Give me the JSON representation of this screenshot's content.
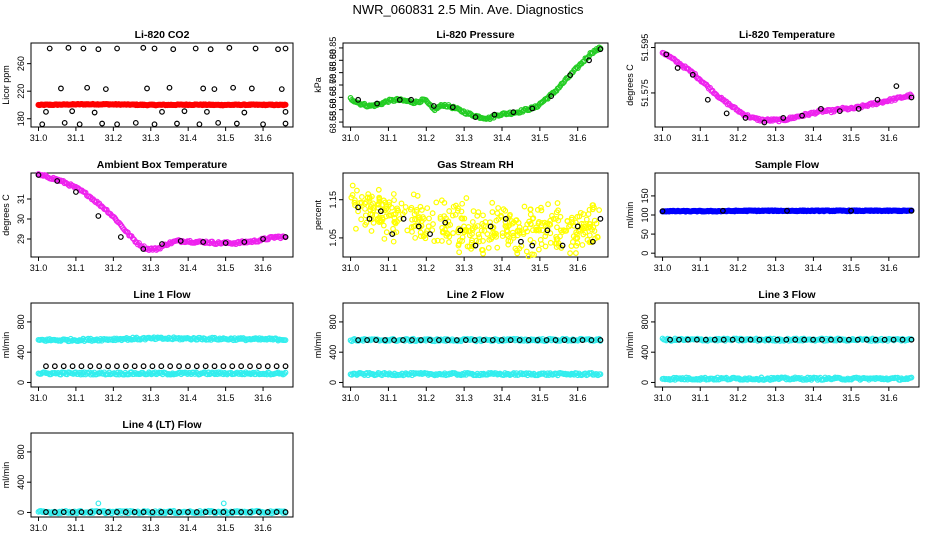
{
  "page": {
    "title": "NWR_060831  2.5 Min. Ave. Diagnostics"
  },
  "chart_data": [
    {
      "type": "scatter",
      "title": "Li-820 CO2",
      "xlabel": "",
      "ylabel": "Licor ppm",
      "xlim": [
        30.98,
        31.68
      ],
      "ylim": [
        168,
        290
      ],
      "xticks": [
        31.0,
        31.1,
        31.2,
        31.3,
        31.4,
        31.5,
        31.6
      ],
      "xtick_labels": [
        "31.0",
        "31.1",
        "31.2",
        "31.3",
        "31.4",
        "31.5",
        "31.6"
      ],
      "yticks": [
        180,
        220,
        260
      ],
      "ytick_labels": [
        "180",
        "220",
        "260"
      ],
      "series": [
        {
          "name": "dense",
          "color": "#ff0000",
          "marker": "dot",
          "x_start": 31.0,
          "x_end": 31.66,
          "values": [
            200,
            200.5,
            201,
            201,
            200.5,
            200,
            200.2,
            200.5,
            200,
            200.3,
            200.2,
            200
          ]
        },
        {
          "name": "black-high",
          "color": "#000000",
          "marker": "circle",
          "x": [
            31.03,
            31.08,
            31.12,
            31.16,
            31.21,
            31.28,
            31.31,
            31.36,
            31.42,
            31.46,
            31.51,
            31.58,
            31.64,
            31.66
          ],
          "values": [
            282,
            283,
            282,
            281,
            282,
            283,
            282,
            281,
            282,
            281,
            283,
            282,
            281,
            282
          ]
        },
        {
          "name": "black-low",
          "color": "#000000",
          "marker": "circle",
          "x": [
            31.01,
            31.07,
            31.11,
            31.17,
            31.21,
            31.26,
            31.31,
            31.37,
            31.43,
            31.48,
            31.53,
            31.6,
            31.66
          ],
          "values": [
            172,
            174,
            172,
            173,
            172,
            174,
            172,
            173,
            172,
            174,
            173,
            172,
            173
          ]
        },
        {
          "name": "black-mid",
          "color": "#000000",
          "marker": "circle",
          "x": [
            31.06,
            31.13,
            31.18,
            31.29,
            31.35,
            31.44,
            31.47,
            31.52,
            31.57,
            31.65
          ],
          "values": [
            224,
            225,
            223,
            224,
            225,
            224,
            223,
            225,
            224,
            223
          ]
        },
        {
          "name": "black-near",
          "color": "#000000",
          "marker": "circle",
          "x": [
            31.02,
            31.09,
            31.15,
            31.33,
            31.39,
            31.45,
            31.55,
            31.66
          ],
          "values": [
            190,
            191,
            189,
            190,
            191,
            190,
            189,
            190
          ]
        }
      ]
    },
    {
      "type": "scatter",
      "title": "Li-820 Pressure",
      "xlabel": "",
      "ylabel": "kPa",
      "xlim": [
        30.98,
        31.68
      ],
      "ylim": [
        68.53,
        68.87
      ],
      "xticks": [
        31.0,
        31.1,
        31.2,
        31.3,
        31.4,
        31.5,
        31.6
      ],
      "xtick_labels": [
        "31.0",
        "31.1",
        "31.2",
        "31.3",
        "31.4",
        "31.5",
        "31.6"
      ],
      "yticks": [
        68.55,
        68.6,
        68.65,
        68.7,
        68.75,
        68.8,
        68.85
      ],
      "ytick_labels": [
        "68.55",
        "68.60",
        "68.65",
        "68.70",
        "68.75",
        "68.80",
        "68.85"
      ],
      "series": [
        {
          "name": "green",
          "color": "#22cc22",
          "marker": "circle",
          "x_start": 31.0,
          "x_end": 31.66,
          "values": [
            68.645,
            68.625,
            68.615,
            68.62,
            68.635,
            68.64,
            68.635,
            68.63,
            68.64,
            68.6,
            68.62,
            68.61,
            68.595,
            68.58,
            68.57,
            68.565,
            68.58,
            68.585,
            68.59,
            68.6,
            68.61,
            68.64,
            68.67,
            68.71,
            68.75,
            68.79,
            68.83,
            68.85
          ]
        },
        {
          "name": "black",
          "color": "#000000",
          "marker": "circle",
          "x": [
            31.02,
            31.07,
            31.13,
            31.16,
            31.22,
            31.27,
            31.33,
            31.38,
            31.43,
            31.48,
            31.53,
            31.58,
            31.63,
            31.66
          ],
          "values": [
            68.64,
            68.625,
            68.64,
            68.64,
            68.615,
            68.61,
            68.57,
            68.58,
            68.59,
            68.605,
            68.655,
            68.74,
            68.8,
            68.845
          ]
        }
      ]
    },
    {
      "type": "scatter",
      "title": "Li-820 Temperature",
      "xlabel": "",
      "ylabel": "degrees C",
      "xlim": [
        30.98,
        31.68
      ],
      "ylim": [
        51.56,
        51.597
      ],
      "xticks": [
        31.0,
        31.1,
        31.2,
        31.3,
        31.4,
        31.5,
        31.6
      ],
      "xtick_labels": [
        "31.0",
        "31.1",
        "31.2",
        "31.3",
        "31.4",
        "31.5",
        "31.6"
      ],
      "yticks": [
        51.575,
        51.595
      ],
      "ytick_labels": [
        "51.575",
        "51.595"
      ],
      "series": [
        {
          "name": "magenta",
          "color": "#ee22ee",
          "marker": "circle",
          "x_start": 31.0,
          "x_end": 31.66,
          "values": [
            51.593,
            51.59,
            51.587,
            51.584,
            51.58,
            51.576,
            51.572,
            51.569,
            51.566,
            51.564,
            51.563,
            51.563,
            51.563,
            51.564,
            51.565,
            51.566,
            51.567,
            51.567,
            51.568,
            51.568,
            51.569,
            51.57,
            51.571,
            51.572,
            51.573,
            51.574
          ]
        },
        {
          "name": "black",
          "color": "#000000",
          "marker": "circle",
          "x": [
            31.01,
            31.04,
            31.08,
            31.12,
            31.17,
            31.22,
            31.27,
            31.32,
            31.37,
            31.42,
            31.47,
            31.52,
            31.57,
            31.62,
            31.66
          ],
          "values": [
            51.592,
            51.586,
            51.583,
            51.572,
            51.566,
            51.564,
            51.562,
            51.564,
            51.565,
            51.568,
            51.567,
            51.568,
            51.572,
            51.578,
            51.573
          ]
        }
      ]
    },
    {
      "type": "scatter",
      "title": "Ambient Box Temperature",
      "xlabel": "",
      "ylabel": "degrees C",
      "xlim": [
        30.98,
        31.68
      ],
      "ylim": [
        28.1,
        32.3
      ],
      "xticks": [
        31.0,
        31.1,
        31.2,
        31.3,
        31.4,
        31.5,
        31.6
      ],
      "xtick_labels": [
        "31.0",
        "31.1",
        "31.2",
        "31.3",
        "31.4",
        "31.5",
        "31.6"
      ],
      "yticks": [
        29,
        30,
        31
      ],
      "ytick_labels": [
        "29",
        "30",
        "31"
      ],
      "series": [
        {
          "name": "magenta",
          "color": "#ee22ee",
          "marker": "circle",
          "x_start": 31.0,
          "x_end": 31.66,
          "values": [
            32.2,
            32.1,
            31.95,
            31.75,
            31.5,
            31.2,
            30.8,
            30.4,
            29.9,
            29.3,
            28.8,
            28.5,
            28.5,
            28.75,
            28.9,
            28.9,
            28.85,
            28.85,
            28.8,
            28.8,
            28.8,
            28.85,
            28.9,
            29.0,
            29.1,
            29.1
          ]
        },
        {
          "name": "black",
          "color": "#000000",
          "marker": "circle",
          "x": [
            31.0,
            31.05,
            31.1,
            31.16,
            31.22,
            31.28,
            31.33,
            31.38,
            31.44,
            31.5,
            31.55,
            31.6,
            31.66
          ],
          "values": [
            32.2,
            31.9,
            31.35,
            30.15,
            29.1,
            28.5,
            28.75,
            28.9,
            28.85,
            28.8,
            28.85,
            29.0,
            29.1
          ]
        }
      ]
    },
    {
      "type": "scatter",
      "title": "Gas Stream RH",
      "xlabel": "",
      "ylabel": "percent",
      "xlim": [
        30.98,
        31.68
      ],
      "ylim": [
        1.0,
        1.22
      ],
      "xticks": [
        31.0,
        31.1,
        31.2,
        31.3,
        31.4,
        31.5,
        31.6
      ],
      "xtick_labels": [
        "31.0",
        "31.1",
        "31.2",
        "31.3",
        "31.4",
        "31.5",
        "31.6"
      ],
      "yticks": [
        1.05,
        1.15
      ],
      "ytick_labels": [
        "1.05",
        "1.15"
      ],
      "series": [
        {
          "name": "yellow",
          "color": "#ffff00",
          "marker": "circle",
          "x_start": 31.0,
          "x_end": 31.66,
          "center": [
            1.14,
            1.12,
            1.1,
            1.09,
            1.08,
            1.075,
            1.07,
            1.07,
            1.07,
            1.075,
            1.08
          ],
          "spread": 0.05
        },
        {
          "name": "black",
          "color": "#000000",
          "marker": "circle",
          "x": [
            31.02,
            31.05,
            31.08,
            31.11,
            31.14,
            31.18,
            31.21,
            31.25,
            31.29,
            31.33,
            31.37,
            31.41,
            31.45,
            31.48,
            31.52,
            31.56,
            31.6,
            31.64,
            31.66
          ],
          "values": [
            1.13,
            1.1,
            1.12,
            1.06,
            1.1,
            1.08,
            1.06,
            1.09,
            1.07,
            1.03,
            1.08,
            1.1,
            1.04,
            1.03,
            1.07,
            1.03,
            1.08,
            1.04,
            1.1
          ]
        }
      ]
    },
    {
      "type": "scatter",
      "title": "Sample Flow",
      "xlabel": "",
      "ylabel": "ml/min",
      "xlim": [
        30.98,
        31.68
      ],
      "ylim": [
        -10,
        210
      ],
      "xticks": [
        31.0,
        31.1,
        31.2,
        31.3,
        31.4,
        31.5,
        31.6
      ],
      "xtick_labels": [
        "31.0",
        "31.1",
        "31.2",
        "31.3",
        "31.4",
        "31.5",
        "31.6"
      ],
      "yticks": [
        0,
        50,
        100,
        150
      ],
      "ytick_labels": [
        "0",
        "50",
        "100",
        "150"
      ],
      "series": [
        {
          "name": "blue",
          "color": "#0000ff",
          "marker": "dot",
          "x_start": 31.0,
          "x_end": 31.66,
          "values": [
            110,
            110,
            110,
            111,
            111,
            111,
            111,
            111,
            111,
            111
          ]
        },
        {
          "name": "black",
          "color": "#000000",
          "marker": "circle",
          "x": [
            31.0,
            31.16,
            31.33,
            31.5,
            31.66
          ],
          "values": [
            110,
            111,
            111,
            111,
            111
          ]
        }
      ]
    },
    {
      "type": "scatter",
      "title": "Line 1 Flow",
      "xlabel": "",
      "ylabel": "ml/min",
      "xlim": [
        30.98,
        31.68
      ],
      "ylim": [
        -60,
        1050
      ],
      "xticks": [
        31.0,
        31.1,
        31.2,
        31.3,
        31.4,
        31.5,
        31.6
      ],
      "xtick_labels": [
        "31.0",
        "31.1",
        "31.2",
        "31.3",
        "31.4",
        "31.5",
        "31.6"
      ],
      "yticks": [
        0,
        400,
        800
      ],
      "ytick_labels": [
        "0",
        "400",
        "800"
      ],
      "series": [
        {
          "name": "cyan-high",
          "color": "#33eeee",
          "marker": "circle",
          "x_start": 31.0,
          "x_end": 31.66,
          "values": [
            560,
            560,
            565,
            575,
            580,
            580,
            578,
            575,
            570,
            570
          ]
        },
        {
          "name": "cyan-low",
          "color": "#33eeee",
          "marker": "circle",
          "x_start": 31.0,
          "x_end": 31.66,
          "values": [
            120,
            120,
            118,
            120,
            120
          ]
        },
        {
          "name": "black",
          "color": "#000000",
          "marker": "circle",
          "x_start": 31.02,
          "x_end": 31.66,
          "count": 28,
          "values": [
            215
          ]
        }
      ]
    },
    {
      "type": "scatter",
      "title": "Line 2 Flow",
      "xlabel": "",
      "ylabel": "ml/min",
      "xlim": [
        30.98,
        31.68
      ],
      "ylim": [
        -60,
        1050
      ],
      "xticks": [
        31.0,
        31.1,
        31.2,
        31.3,
        31.4,
        31.5,
        31.6
      ],
      "xtick_labels": [
        "31.0",
        "31.1",
        "31.2",
        "31.3",
        "31.4",
        "31.5",
        "31.6"
      ],
      "yticks": [
        0,
        400,
        800
      ],
      "ytick_labels": [
        "0",
        "400",
        "800"
      ],
      "series": [
        {
          "name": "cyan-high",
          "color": "#33eeee",
          "marker": "circle",
          "x_start": 31.0,
          "x_end": 31.66,
          "values": [
            560,
            560,
            560,
            562,
            562
          ]
        },
        {
          "name": "cyan-low",
          "color": "#33eeee",
          "marker": "circle",
          "x_start": 31.0,
          "x_end": 31.66,
          "values": [
            110,
            110,
            110
          ]
        },
        {
          "name": "black",
          "color": "#000000",
          "marker": "circle",
          "x_start": 31.02,
          "x_end": 31.66,
          "count": 28,
          "values": [
            560
          ]
        }
      ]
    },
    {
      "type": "scatter",
      "title": "Line 3 Flow",
      "xlabel": "",
      "ylabel": "ml/min",
      "xlim": [
        30.98,
        31.68
      ],
      "ylim": [
        -60,
        1050
      ],
      "xticks": [
        31.0,
        31.1,
        31.2,
        31.3,
        31.4,
        31.5,
        31.6
      ],
      "xtick_labels": [
        "31.0",
        "31.1",
        "31.2",
        "31.3",
        "31.4",
        "31.5",
        "31.6"
      ],
      "yticks": [
        0,
        400,
        800
      ],
      "ytick_labels": [
        "0",
        "400",
        "800"
      ],
      "series": [
        {
          "name": "cyan-high",
          "color": "#33eeee",
          "marker": "circle",
          "x_start": 31.0,
          "x_end": 31.66,
          "values": [
            565,
            565,
            565,
            565
          ]
        },
        {
          "name": "cyan-low",
          "color": "#33eeee",
          "marker": "circle",
          "x_start": 31.0,
          "x_end": 31.66,
          "values": [
            50,
            50,
            50
          ]
        },
        {
          "name": "black",
          "color": "#000000",
          "marker": "circle",
          "x_start": 31.02,
          "x_end": 31.66,
          "count": 28,
          "values": [
            565
          ]
        }
      ]
    },
    {
      "type": "scatter",
      "title": "Line 4 (LT) Flow",
      "xlabel": "",
      "ylabel": "ml/min",
      "xlim": [
        30.98,
        31.68
      ],
      "ylim": [
        -60,
        1050
      ],
      "xticks": [
        31.0,
        31.1,
        31.2,
        31.3,
        31.4,
        31.5,
        31.6
      ],
      "xtick_labels": [
        "31.0",
        "31.1",
        "31.2",
        "31.3",
        "31.4",
        "31.5",
        "31.6"
      ],
      "yticks": [
        0,
        400,
        800
      ],
      "ytick_labels": [
        "0",
        "400",
        "800"
      ],
      "series": [
        {
          "name": "cyan",
          "color": "#33eeee",
          "marker": "circle",
          "x_start": 31.0,
          "x_end": 31.66,
          "values": [
            5,
            5,
            5
          ]
        },
        {
          "name": "cyan-spikes",
          "color": "#33eeee",
          "marker": "circle",
          "x": [
            31.16,
            31.495
          ],
          "values": [
            120,
            120
          ]
        },
        {
          "name": "black",
          "color": "#000000",
          "marker": "circle",
          "x_start": 31.02,
          "x_end": 31.66,
          "count": 28,
          "values": [
            5
          ]
        }
      ]
    }
  ]
}
